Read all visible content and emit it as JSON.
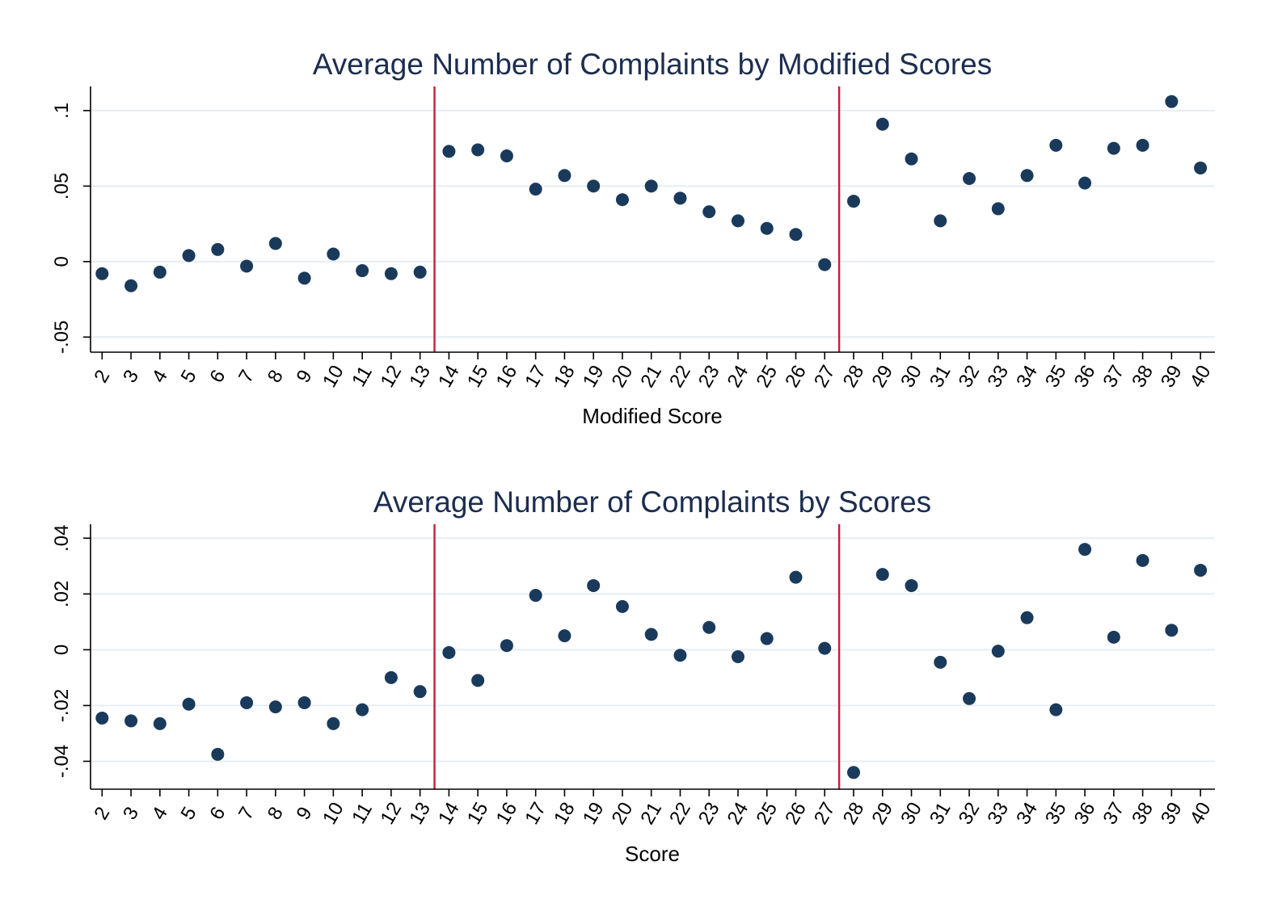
{
  "colors": {
    "marker": "#1a3a5c",
    "reference_line": "#c41e3a",
    "grid": "#e6eef0",
    "title": "#1c2d4f"
  },
  "chart_data": [
    {
      "type": "scatter",
      "title": "Average Number of Complaints by Modified Scores",
      "xlabel": "Modified Score",
      "ylabel": "",
      "x": [
        2,
        3,
        4,
        5,
        6,
        7,
        8,
        9,
        10,
        11,
        12,
        13,
        14,
        15,
        16,
        17,
        18,
        19,
        20,
        21,
        22,
        23,
        24,
        25,
        26,
        27,
        28,
        29,
        30,
        31,
        32,
        33,
        34,
        35,
        36,
        37,
        38,
        39,
        40
      ],
      "y": [
        -0.008,
        -0.016,
        -0.007,
        0.004,
        0.008,
        -0.003,
        0.012,
        -0.011,
        0.005,
        -0.006,
        -0.008,
        -0.007,
        0.073,
        0.074,
        0.07,
        0.048,
        0.057,
        0.05,
        0.041,
        0.05,
        0.042,
        0.033,
        0.027,
        0.022,
        0.018,
        -0.002,
        0.04,
        0.091,
        0.068,
        0.027,
        0.055,
        0.035,
        0.057,
        0.077,
        0.052,
        0.075,
        0.077,
        0.106,
        0.062
      ],
      "xlim": [
        1.6,
        40.5
      ],
      "ylim": [
        -0.06,
        0.116
      ],
      "yticks": [
        -0.05,
        0,
        0.05,
        0.1
      ],
      "ytick_labels": [
        "-.05",
        "0",
        ".05",
        ".1"
      ],
      "xticks": [
        2,
        3,
        4,
        5,
        6,
        7,
        8,
        9,
        10,
        11,
        12,
        13,
        14,
        15,
        16,
        17,
        18,
        19,
        20,
        21,
        22,
        23,
        24,
        25,
        26,
        27,
        28,
        29,
        30,
        31,
        32,
        33,
        34,
        35,
        36,
        37,
        38,
        39,
        40
      ],
      "reference_lines_x": [
        13.5,
        27.5
      ],
      "grid": true,
      "legend": "none"
    },
    {
      "type": "scatter",
      "title": "Average Number of Complaints by Scores",
      "xlabel": "Score",
      "ylabel": "",
      "x": [
        2,
        3,
        4,
        5,
        6,
        7,
        8,
        9,
        10,
        11,
        12,
        13,
        14,
        15,
        16,
        17,
        18,
        19,
        20,
        21,
        22,
        23,
        24,
        25,
        26,
        27,
        28,
        29,
        30,
        31,
        32,
        33,
        34,
        35,
        36,
        37,
        38,
        39,
        40
      ],
      "y": [
        -0.0245,
        -0.0255,
        -0.0265,
        -0.0195,
        -0.0375,
        -0.019,
        -0.0205,
        -0.019,
        -0.0265,
        -0.0215,
        -0.01,
        -0.015,
        -0.001,
        -0.011,
        0.0015,
        0.0195,
        0.005,
        0.023,
        0.0155,
        0.0055,
        -0.002,
        0.008,
        -0.0025,
        0.004,
        0.026,
        0.0005,
        -0.044,
        0.027,
        0.023,
        -0.0045,
        -0.0175,
        -0.0005,
        0.0115,
        -0.0215,
        0.036,
        0.0045,
        0.032,
        0.007,
        0.0285
      ],
      "xlim": [
        1.6,
        40.5
      ],
      "ylim": [
        -0.05,
        0.045
      ],
      "yticks": [
        -0.04,
        -0.02,
        0,
        0.02,
        0.04
      ],
      "ytick_labels": [
        "-.04",
        "-.02",
        "0",
        ".02",
        ".04"
      ],
      "xticks": [
        2,
        3,
        4,
        5,
        6,
        7,
        8,
        9,
        10,
        11,
        12,
        13,
        14,
        15,
        16,
        17,
        18,
        19,
        20,
        21,
        22,
        23,
        24,
        25,
        26,
        27,
        28,
        29,
        30,
        31,
        32,
        33,
        34,
        35,
        36,
        37,
        38,
        39,
        40
      ],
      "reference_lines_x": [
        13.5,
        27.5
      ],
      "grid": true,
      "legend": "none"
    }
  ]
}
